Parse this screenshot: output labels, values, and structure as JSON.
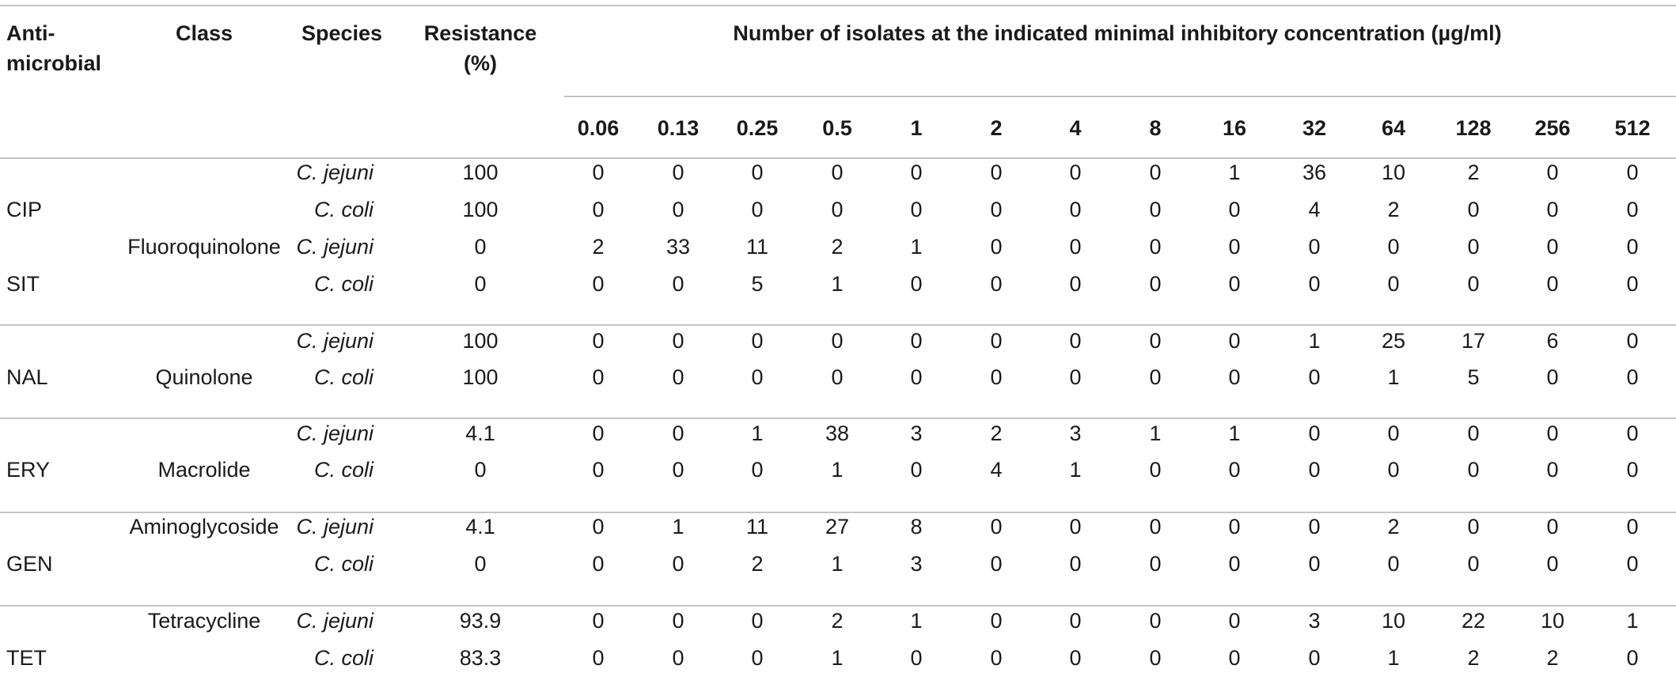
{
  "header": {
    "antimicrobial_line1": "Anti-",
    "antimicrobial_line2": "microbial",
    "class": "Class",
    "species": "Species",
    "resistance_line1": "Resistance",
    "resistance_line2": "(%)",
    "mic_title": "Number of isolates at the indicated minimal inhibitory concentration (µg/ml)"
  },
  "concentrations": [
    "0.06",
    "0.13",
    "0.25",
    "0.5",
    "1",
    "2",
    "4",
    "8",
    "16",
    "32",
    "64",
    "128",
    "256",
    "512"
  ],
  "rows": [
    {
      "drug": "",
      "cls": "",
      "species": "C. jejuni",
      "res": "100",
      "vals": [
        "0",
        "0",
        "0",
        "0",
        "0",
        "0",
        "0",
        "0",
        "1",
        "36",
        "10",
        "2",
        "0",
        "0"
      ]
    },
    {
      "drug": "CIP",
      "cls": "",
      "species": "C. coli",
      "res": "100",
      "vals": [
        "0",
        "0",
        "0",
        "0",
        "0",
        "0",
        "0",
        "0",
        "0",
        "4",
        "2",
        "0",
        "0",
        "0"
      ]
    },
    {
      "drug": "",
      "cls": "Fluoroquinolone",
      "species": "C. jejuni",
      "res": "0",
      "vals": [
        "2",
        "33",
        "11",
        "2",
        "1",
        "0",
        "0",
        "0",
        "0",
        "0",
        "0",
        "0",
        "0",
        "0"
      ]
    },
    {
      "drug": "SIT",
      "cls": "",
      "species": "C. coli",
      "res": "0",
      "vals": [
        "0",
        "0",
        "5",
        "1",
        "0",
        "0",
        "0",
        "0",
        "0",
        "0",
        "0",
        "0",
        "0",
        "0"
      ]
    },
    {
      "drug": "",
      "cls": "",
      "species": "C. jejuni",
      "res": "100",
      "vals": [
        "0",
        "0",
        "0",
        "0",
        "0",
        "0",
        "0",
        "0",
        "0",
        "1",
        "25",
        "17",
        "6",
        "0"
      ]
    },
    {
      "drug": "NAL",
      "cls": "Quinolone",
      "species": "C. coli",
      "res": "100",
      "vals": [
        "0",
        "0",
        "0",
        "0",
        "0",
        "0",
        "0",
        "0",
        "0",
        "0",
        "1",
        "5",
        "0",
        "0"
      ]
    },
    {
      "drug": "",
      "cls": "",
      "species": "C. jejuni",
      "res": "4.1",
      "vals": [
        "0",
        "0",
        "1",
        "38",
        "3",
        "2",
        "3",
        "1",
        "1",
        "0",
        "0",
        "0",
        "0",
        "0"
      ]
    },
    {
      "drug": "ERY",
      "cls": "Macrolide",
      "species": "C. coli",
      "res": "0",
      "vals": [
        "0",
        "0",
        "0",
        "1",
        "0",
        "4",
        "1",
        "0",
        "0",
        "0",
        "0",
        "0",
        "0",
        "0"
      ]
    },
    {
      "drug": "",
      "cls": "Aminoglycoside",
      "species": "C. jejuni",
      "res": "4.1",
      "vals": [
        "0",
        "1",
        "11",
        "27",
        "8",
        "0",
        "0",
        "0",
        "0",
        "0",
        "2",
        "0",
        "0",
        "0"
      ]
    },
    {
      "drug": "GEN",
      "cls": "",
      "species": "C. coli",
      "res": "0",
      "vals": [
        "0",
        "0",
        "2",
        "1",
        "3",
        "0",
        "0",
        "0",
        "0",
        "0",
        "0",
        "0",
        "0",
        "0"
      ]
    },
    {
      "drug": "",
      "cls": "Tetracycline",
      "species": "C. jejuni",
      "res": "93.9",
      "vals": [
        "0",
        "0",
        "0",
        "2",
        "1",
        "0",
        "0",
        "0",
        "0",
        "3",
        "10",
        "22",
        "10",
        "1"
      ]
    },
    {
      "drug": "TET",
      "cls": "",
      "species": "C. coli",
      "res": "83.3",
      "vals": [
        "0",
        "0",
        "0",
        "1",
        "0",
        "0",
        "0",
        "0",
        "0",
        "0",
        "1",
        "2",
        "2",
        "0"
      ]
    }
  ]
}
